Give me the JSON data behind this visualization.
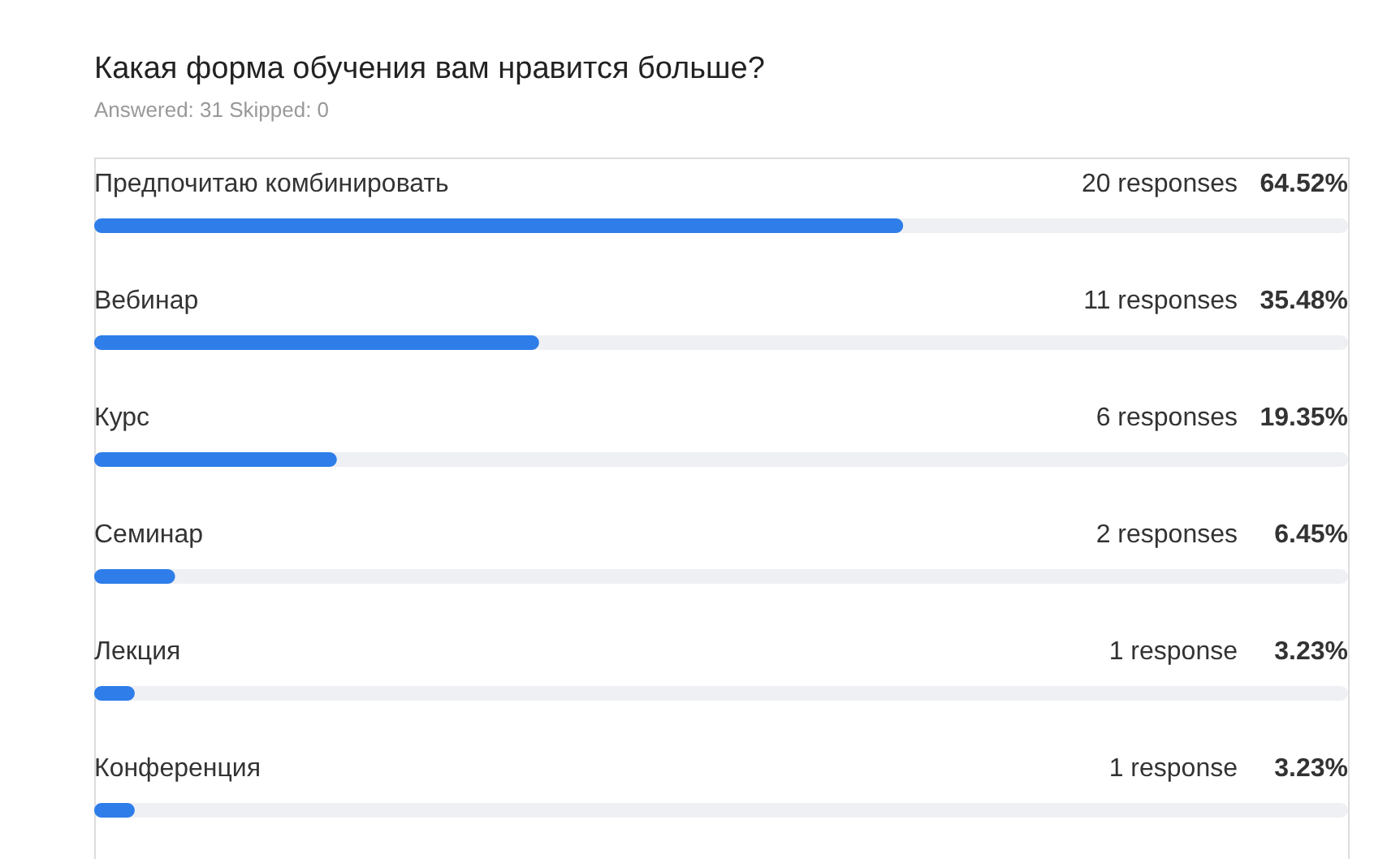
{
  "chart_data": {
    "type": "bar",
    "orientation": "horizontal",
    "title": "Какая форма обучения вам нравится больше?",
    "subtitle": "Answered: 31   Skipped: 0",
    "categories": [
      "Предпочитаю комбинировать",
      "Вебинар",
      "Курс",
      "Семинар",
      "Лекция",
      "Конференция"
    ],
    "values": [
      64.52,
      35.48,
      19.35,
      6.45,
      3.23,
      3.23
    ],
    "value_labels": [
      "64.52%",
      "35.48%",
      "19.35%",
      "6.45%",
      "3.23%",
      "3.23%"
    ],
    "color": "#2e7de9",
    "xlim": [
      0,
      100
    ],
    "tick_labels": "y",
    "grid": false,
    "annotations": [
      "20 responses",
      "11 responses",
      "6 responses",
      "2 responses",
      "1 response",
      "1 response"
    ]
  }
}
